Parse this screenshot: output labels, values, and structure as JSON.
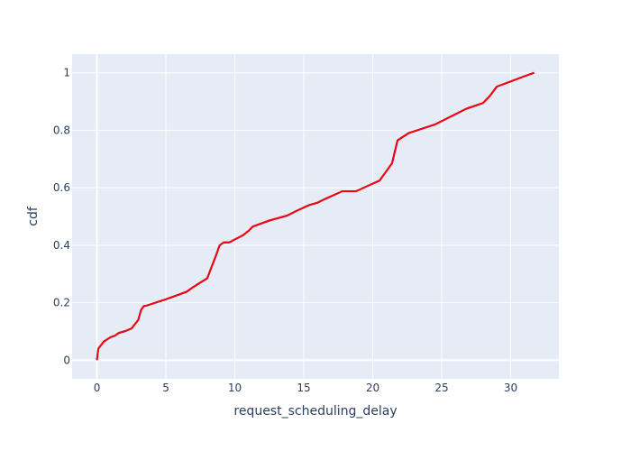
{
  "chart_data": {
    "type": "line",
    "title": "",
    "xlabel": "request_scheduling_delay",
    "ylabel": "cdf",
    "xlim": [
      -1.8,
      33.5
    ],
    "ylim": [
      -0.065,
      1.065
    ],
    "xticks": [
      0,
      5,
      10,
      15,
      20,
      25,
      30
    ],
    "yticks": [
      0,
      0.2,
      0.4,
      0.6,
      0.8,
      1
    ],
    "ytick_labels": [
      "0",
      "0.2",
      "0.4",
      "0.6",
      "0.8",
      "1"
    ],
    "grid": true,
    "plot_background": "#e5ecf6",
    "grid_color": "#ffffff",
    "legend": "none",
    "series": [
      {
        "color": "#0000ff",
        "x": [
          0.0,
          0.1,
          0.5,
          1.0,
          1.3,
          1.6,
          2.0,
          2.5,
          3.0,
          3.2,
          3.4,
          3.6,
          5.0,
          6.5,
          7.0,
          8.0,
          8.6,
          8.9,
          9.2,
          9.6,
          10.0,
          10.6,
          11.0,
          11.3,
          12.5,
          13.8,
          14.5,
          15.4,
          16.0,
          16.5,
          17.8,
          18.8,
          19.8,
          20.5,
          21.4,
          21.8,
          22.6,
          24.5,
          26.8,
          28.0,
          28.5,
          29.0,
          30.0,
          31.0,
          31.7
        ],
        "y": [
          0.0,
          0.04,
          0.065,
          0.08,
          0.085,
          0.095,
          0.1,
          0.11,
          0.14,
          0.175,
          0.188,
          0.19,
          0.212,
          0.238,
          0.255,
          0.285,
          0.36,
          0.4,
          0.41,
          0.41,
          0.42,
          0.435,
          0.45,
          0.465,
          0.486,
          0.503,
          0.52,
          0.54,
          0.548,
          0.56,
          0.588,
          0.588,
          0.61,
          0.625,
          0.685,
          0.765,
          0.79,
          0.82,
          0.875,
          0.895,
          0.92,
          0.952,
          0.97,
          0.988,
          1.0
        ]
      },
      {
        "color": "#ff0000",
        "x": [
          0.0,
          0.1,
          0.5,
          1.0,
          1.3,
          1.6,
          2.0,
          2.5,
          3.0,
          3.2,
          3.4,
          3.6,
          5.0,
          6.5,
          7.0,
          8.0,
          8.6,
          8.9,
          9.2,
          9.6,
          10.0,
          10.6,
          11.0,
          11.3,
          12.5,
          13.8,
          14.5,
          15.4,
          16.0,
          16.5,
          17.8,
          18.8,
          19.8,
          20.5,
          21.4,
          21.8,
          22.6,
          24.5,
          26.8,
          28.0,
          28.5,
          29.0,
          30.0,
          31.0,
          31.7
        ],
        "y": [
          0.0,
          0.04,
          0.065,
          0.08,
          0.085,
          0.095,
          0.1,
          0.11,
          0.14,
          0.175,
          0.188,
          0.19,
          0.212,
          0.238,
          0.255,
          0.285,
          0.36,
          0.4,
          0.41,
          0.41,
          0.42,
          0.435,
          0.45,
          0.465,
          0.486,
          0.503,
          0.52,
          0.54,
          0.548,
          0.56,
          0.588,
          0.588,
          0.61,
          0.625,
          0.685,
          0.765,
          0.79,
          0.82,
          0.875,
          0.895,
          0.92,
          0.952,
          0.97,
          0.988,
          1.0
        ]
      }
    ]
  }
}
